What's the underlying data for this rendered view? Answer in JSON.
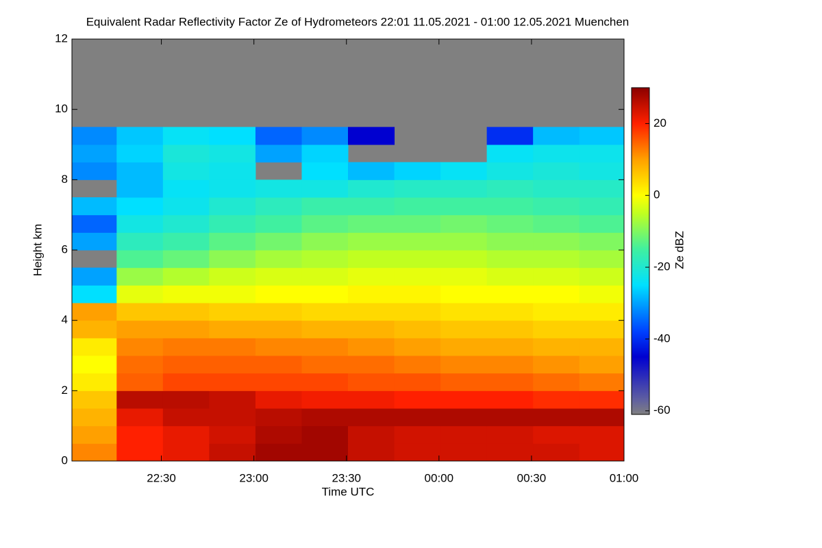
{
  "chart_data": {
    "type": "heatmap",
    "title": "Equivalent Radar Reflectivity Factor Ze of Hydrometeors   22:01 11.05.2021 - 01:00 12.05.2021 Muenchen",
    "x_label": "Time UTC",
    "y_label": "Height km",
    "colorbar_label": "Ze dBZ",
    "xlim": [
      "22:01",
      "01:00"
    ],
    "xticks": [
      "22:30",
      "23:00",
      "23:30",
      "00:00",
      "00:30",
      "01:00"
    ],
    "ylim": [
      0,
      12
    ],
    "yticks": [
      0,
      2,
      4,
      6,
      8,
      10,
      12
    ],
    "zlim": [
      -61,
      30
    ],
    "zticks": [
      -60,
      -40,
      -20,
      0,
      20
    ],
    "missing_color": "#808080",
    "colorscale": [
      [
        -61,
        "#808080"
      ],
      [
        -57,
        "#6060a0"
      ],
      [
        -45,
        "#0000d0"
      ],
      [
        -38,
        "#0040ff"
      ],
      [
        -25,
        "#00e0ff"
      ],
      [
        -15,
        "#40f0a0"
      ],
      [
        -5,
        "#c0ff20"
      ],
      [
        0,
        "#ffff00"
      ],
      [
        10,
        "#ffa000"
      ],
      [
        20,
        "#ff2000"
      ],
      [
        30,
        "#8b0000"
      ]
    ],
    "x": [
      "22:08",
      "22:23",
      "22:38",
      "22:53",
      "23:08",
      "23:23",
      "23:38",
      "23:53",
      "00:08",
      "00:23",
      "00:38",
      "00:53"
    ],
    "y": [
      0.25,
      0.75,
      1.25,
      1.75,
      2.25,
      2.75,
      3.25,
      3.75,
      4.25,
      4.75,
      5.25,
      5.75,
      6.25,
      6.75,
      7.25,
      7.75,
      8.25,
      8.75,
      9.25
    ],
    "z": [
      [
        12,
        20,
        22,
        25,
        28,
        28,
        25,
        24,
        24,
        24,
        24,
        23
      ],
      [
        10,
        20,
        22,
        24,
        27,
        28,
        25,
        24,
        24,
        24,
        23,
        23
      ],
      [
        8,
        22,
        25,
        25,
        26,
        27,
        27,
        27,
        27,
        27,
        27,
        27
      ],
      [
        6,
        26,
        26,
        25,
        22,
        21,
        21,
        20,
        20,
        20,
        19,
        19
      ],
      [
        2,
        15,
        17,
        17,
        17,
        17,
        16,
        16,
        15,
        15,
        14,
        13
      ],
      [
        0,
        14,
        15,
        15,
        15,
        14,
        14,
        13,
        12,
        12,
        11,
        10
      ],
      [
        2,
        12,
        13,
        13,
        12,
        12,
        11,
        10,
        9,
        9,
        8,
        8
      ],
      [
        8,
        10,
        10,
        9,
        9,
        8,
        8,
        7,
        6,
        6,
        5,
        5
      ],
      [
        10,
        6,
        6,
        5,
        5,
        4,
        4,
        4,
        3,
        3,
        2,
        2
      ],
      [
        -25,
        -2,
        -1,
        -1,
        0,
        0,
        1,
        1,
        0,
        0,
        0,
        -1
      ],
      [
        -30,
        -8,
        -6,
        -4,
        -3,
        -3,
        -2,
        -2,
        -2,
        -3,
        -3,
        -4
      ],
      [
        null,
        -14,
        -12,
        -9,
        -7,
        -6,
        -5,
        -5,
        -5,
        -6,
        -6,
        -7
      ],
      [
        -30,
        -18,
        -16,
        -13,
        -11,
        -9,
        -8,
        -8,
        -8,
        -9,
        -9,
        -10
      ],
      [
        -35,
        -22,
        -20,
        -17,
        -15,
        -13,
        -12,
        -12,
        -11,
        -12,
        -13,
        -14
      ],
      [
        -28,
        -25,
        -23,
        -20,
        -18,
        -16,
        -16,
        -15,
        -15,
        -15,
        -16,
        -17
      ],
      [
        null,
        -28,
        -24,
        -23,
        -22,
        -22,
        -20,
        -19,
        -19,
        -18,
        -19,
        -19
      ],
      [
        -32,
        -28,
        -22,
        -23,
        null,
        -25,
        -28,
        -26,
        -24,
        -22,
        -21,
        -22
      ],
      [
        -30,
        -26,
        -21,
        -22,
        -30,
        -26,
        null,
        null,
        null,
        -24,
        -23,
        -23
      ],
      [
        -32,
        -27,
        -24,
        -25,
        -35,
        -32,
        -45,
        null,
        null,
        -40,
        -28,
        -27
      ]
    ]
  }
}
